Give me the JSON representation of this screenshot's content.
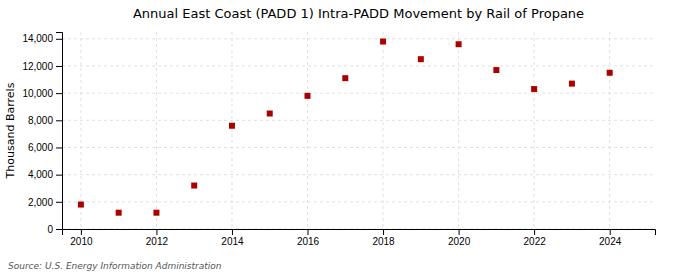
{
  "chart_data": {
    "type": "scatter",
    "title": "Annual East Coast (PADD 1) Intra-PADD Movement by Rail of Propane",
    "ylabel": "Thousand Barrels",
    "annotations": [
      "Source: U.S. Energy Information Administration"
    ],
    "x": [
      2010,
      2011,
      2012,
      2013,
      2014,
      2015,
      2016,
      2017,
      2018,
      2019,
      2020,
      2021,
      2022,
      2023,
      2024
    ],
    "values": [
      1800,
      1200,
      1200,
      3200,
      7600,
      8500,
      9800,
      11100,
      13800,
      12500,
      13600,
      11700,
      10300,
      10700,
      11500
    ],
    "color": "#aa0000",
    "marker": "square",
    "xlim": [
      2009.5,
      2025.2
    ],
    "ylim": [
      0,
      14500
    ],
    "xticks": [
      2010,
      2012,
      2014,
      2016,
      2018,
      2020,
      2022,
      2024
    ],
    "yticks": [
      0,
      {
        "value": 2000,
        "label": "2,000"
      },
      {
        "value": 4000,
        "label": "4,000"
      },
      {
        "value": 6000,
        "label": "6,000"
      },
      {
        "value": 8000,
        "label": "8,000"
      },
      {
        "value": 10000,
        "label": "10,000"
      },
      {
        "value": 12000,
        "label": "12,000"
      },
      {
        "value": 14000,
        "label": "14,000"
      }
    ],
    "grid": true
  }
}
